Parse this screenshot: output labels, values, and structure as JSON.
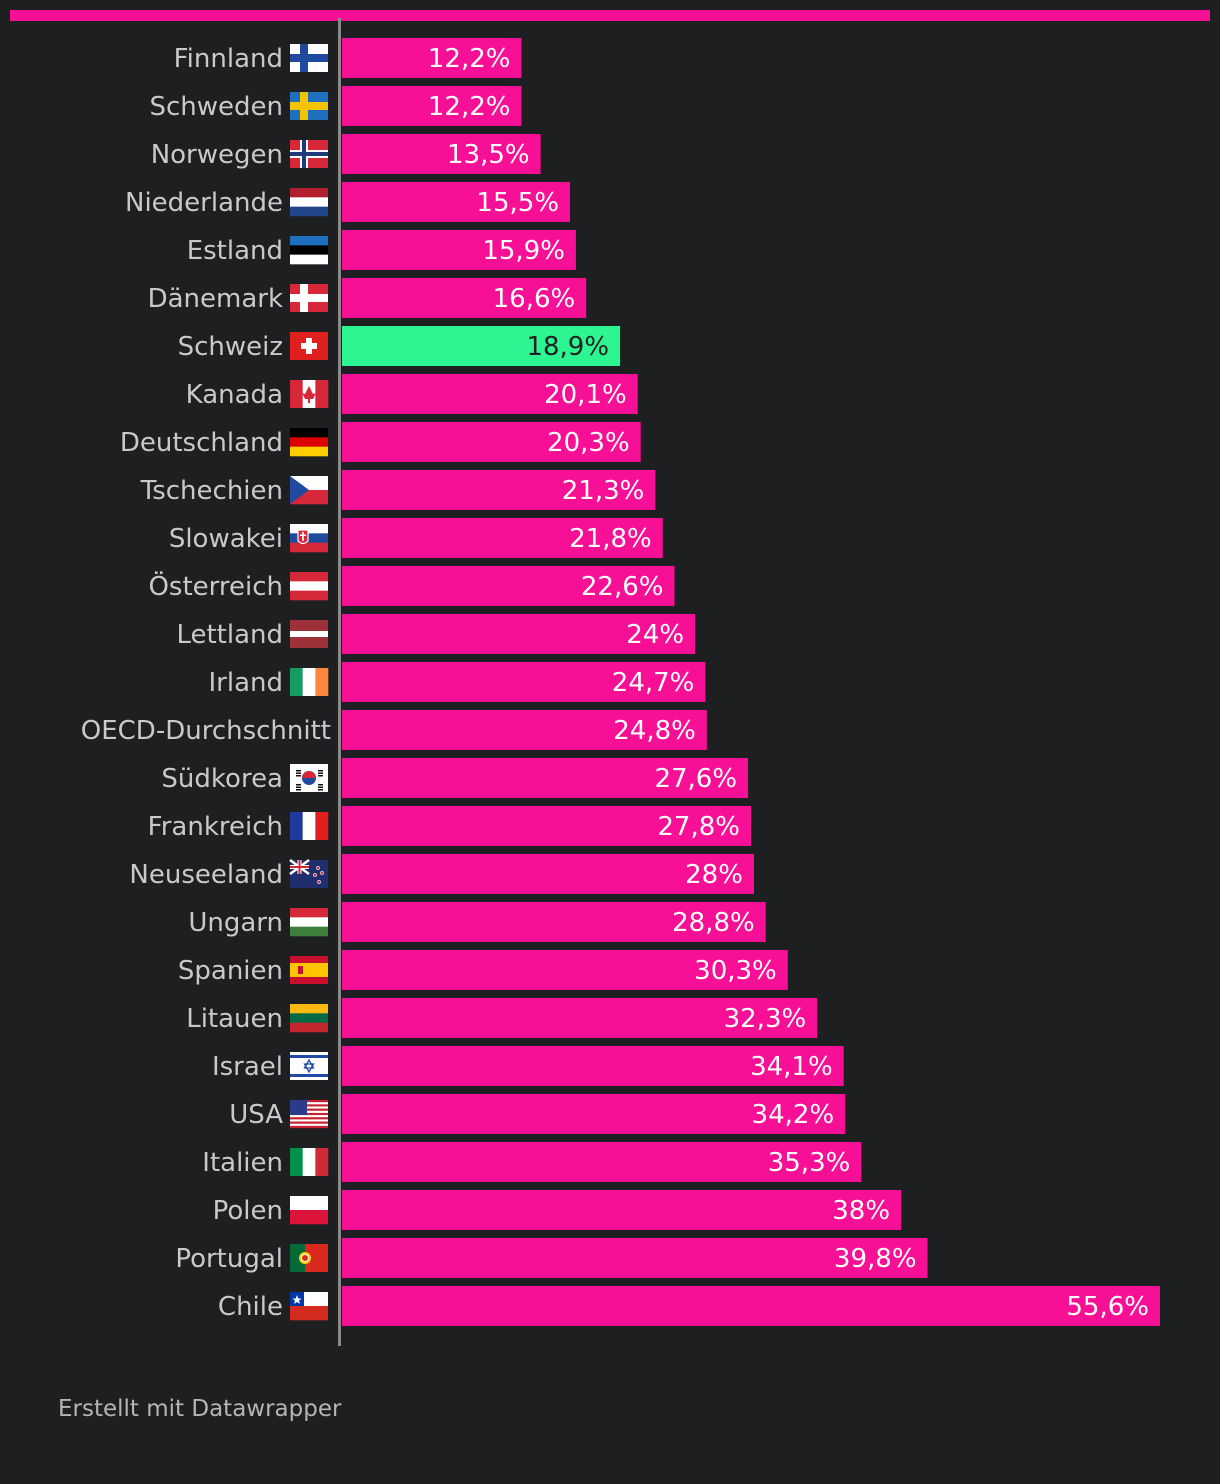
{
  "footer": {
    "credit": "Erstellt mit Datawrapper"
  },
  "colors": {
    "bar": "#f70f95",
    "highlight": "#2cf592",
    "background": "#1e1f21",
    "axis": "#8a8a8a"
  },
  "chart_data": {
    "type": "bar",
    "orientation": "horizontal",
    "title": "",
    "xlabel": "",
    "ylabel": "",
    "xlim": [
      0,
      55.6
    ],
    "grid": false,
    "highlight_category": "Schweiz",
    "categories": [
      "Finnland",
      "Schweden",
      "Norwegen",
      "Niederlande",
      "Estland",
      "Dänemark",
      "Schweiz",
      "Kanada",
      "Deutschland",
      "Tschechien",
      "Slowakei",
      "Österreich",
      "Lettland",
      "Irland",
      "OECD-Durchschnitt",
      "Südkorea",
      "Frankreich",
      "Neuseeland",
      "Ungarn",
      "Spanien",
      "Litauen",
      "Israel",
      "USA",
      "Italien",
      "Polen",
      "Portugal",
      "Chile"
    ],
    "values": [
      12.2,
      12.2,
      13.5,
      15.5,
      15.9,
      16.6,
      18.9,
      20.1,
      20.3,
      21.3,
      21.8,
      22.6,
      24,
      24.7,
      24.8,
      27.6,
      27.8,
      28,
      28.8,
      30.3,
      32.3,
      34.1,
      34.2,
      35.3,
      38,
      39.8,
      55.6
    ],
    "value_labels": [
      "12,2%",
      "12,2%",
      "13,5%",
      "15,5%",
      "15,9%",
      "16,6%",
      "18,9%",
      "20,1%",
      "20,3%",
      "21,3%",
      "21,8%",
      "22,6%",
      "24%",
      "24,7%",
      "24,8%",
      "27,6%",
      "27,8%",
      "28%",
      "28,8%",
      "30,3%",
      "32,3%",
      "34,1%",
      "34,2%",
      "35,3%",
      "38%",
      "39,8%",
      "55,6%"
    ],
    "flags": [
      "finland-flag-icon",
      "sweden-flag-icon",
      "norway-flag-icon",
      "netherlands-flag-icon",
      "estonia-flag-icon",
      "denmark-flag-icon",
      "switzerland-flag-icon",
      "canada-flag-icon",
      "germany-flag-icon",
      "czechia-flag-icon",
      "slovakia-flag-icon",
      "austria-flag-icon",
      "latvia-flag-icon",
      "ireland-flag-icon",
      "",
      "south-korea-flag-icon",
      "france-flag-icon",
      "new-zealand-flag-icon",
      "hungary-flag-icon",
      "spain-flag-icon",
      "lithuania-flag-icon",
      "israel-flag-icon",
      "usa-flag-icon",
      "italy-flag-icon",
      "poland-flag-icon",
      "portugal-flag-icon",
      "chile-flag-icon"
    ]
  }
}
